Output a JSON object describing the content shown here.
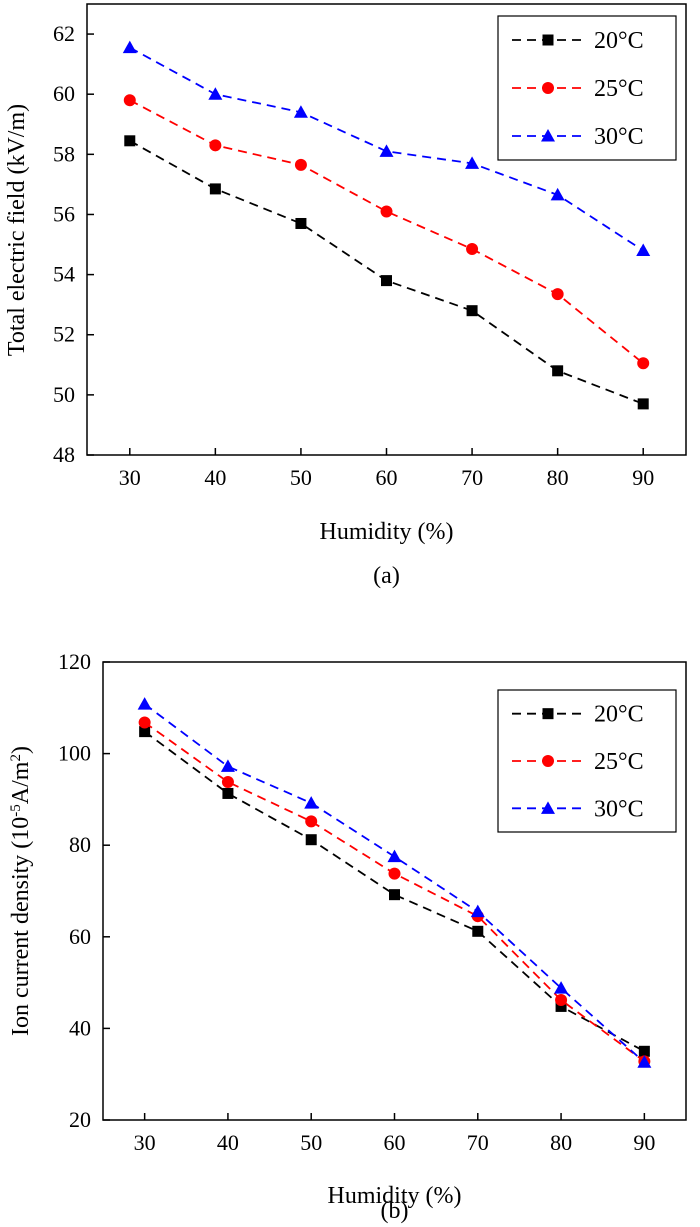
{
  "chart_data": [
    {
      "type": "line",
      "panel_label": "(a)",
      "xlabel": "Humidity (%)",
      "ylabel": "Total electric field (kV/m)",
      "x": [
        30,
        40,
        50,
        60,
        70,
        80,
        90
      ],
      "xlim": [
        25,
        95
      ],
      "ylim": [
        48,
        63
      ],
      "xticks": [
        30,
        40,
        50,
        60,
        70,
        80,
        90
      ],
      "yticks": [
        48,
        50,
        52,
        54,
        56,
        58,
        60,
        62
      ],
      "grid": false,
      "legend_position": "top-right",
      "series": [
        {
          "name": "20°C",
          "color": "#000000",
          "marker": "square",
          "values": [
            58.45,
            56.85,
            55.7,
            53.8,
            52.8,
            50.8,
            49.7
          ]
        },
        {
          "name": "25°C",
          "color": "#ff0000",
          "marker": "circle",
          "values": [
            59.8,
            58.3,
            57.65,
            56.1,
            54.85,
            53.35,
            51.05
          ]
        },
        {
          "name": "30°C",
          "color": "#0000ff",
          "marker": "triangle",
          "values": [
            61.55,
            60.0,
            59.4,
            58.1,
            57.7,
            56.65,
            54.8
          ]
        }
      ]
    },
    {
      "type": "line",
      "panel_label": "(b)",
      "xlabel": "Humidity (%)",
      "ylabel": "Ion current density (10",
      "ylabel_sup1": "-5",
      "ylabel_mid": "A/m",
      "ylabel_sup2": "2",
      "ylabel_end": ")",
      "x": [
        30,
        40,
        50,
        60,
        70,
        80,
        90
      ],
      "xlim": [
        25,
        95
      ],
      "ylim": [
        20,
        120
      ],
      "xticks": [
        30,
        40,
        50,
        60,
        70,
        80,
        90
      ],
      "yticks": [
        20,
        40,
        60,
        80,
        100,
        120
      ],
      "grid": false,
      "legend_position": "top-right",
      "series": [
        {
          "name": "20°C",
          "color": "#000000",
          "marker": "square",
          "values": [
            104.8,
            91.3,
            81.2,
            69.2,
            61.2,
            44.8,
            35.0
          ]
        },
        {
          "name": "25°C",
          "color": "#ff0000",
          "marker": "circle",
          "values": [
            106.8,
            93.8,
            85.2,
            73.8,
            64.5,
            46.2,
            32.8
          ]
        },
        {
          "name": "30°C",
          "color": "#0000ff",
          "marker": "triangle",
          "values": [
            110.8,
            97.2,
            89.2,
            77.5,
            65.5,
            48.8,
            32.6
          ]
        }
      ]
    }
  ]
}
